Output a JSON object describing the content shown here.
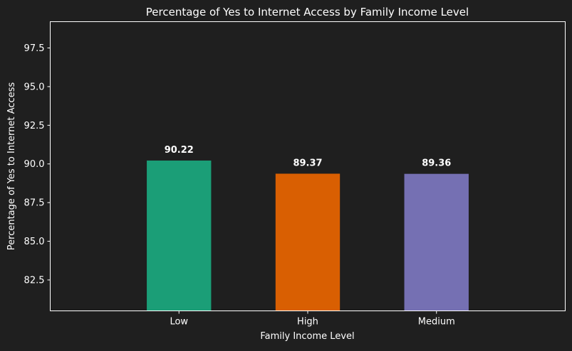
{
  "chart_data": {
    "type": "bar",
    "title": "Percentage of Yes to Internet Access by Family Income Level",
    "xlabel": "Family Income Level",
    "ylabel": "Percentage of Yes to Internet Access",
    "categories": [
      "Low",
      "High",
      "Medium"
    ],
    "values": [
      90.22,
      89.37,
      89.36
    ],
    "value_labels": [
      "90.22",
      "89.37",
      "89.36"
    ],
    "colors": [
      "#1b9e77",
      "#d95f02",
      "#7570b3"
    ],
    "ylim": [
      80.5,
      99.2
    ],
    "yticks": [
      82.5,
      85.0,
      87.5,
      90.0,
      92.5,
      95.0,
      97.5
    ],
    "ytick_labels": [
      "82.5",
      "85.0",
      "87.5",
      "90.0",
      "92.5",
      "95.0",
      "97.5"
    ],
    "grid": false,
    "background": "#1f1f1f",
    "text_color": "#ffffff"
  }
}
